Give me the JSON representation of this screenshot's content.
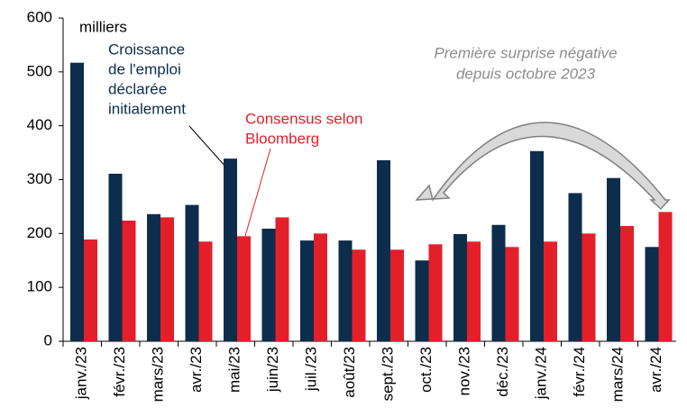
{
  "chart_data": {
    "type": "bar",
    "unit_label": "milliers",
    "categories": [
      "janv./23",
      "févr./23",
      "mars/23",
      "avr./23",
      "mai/23",
      "juin/23",
      "juil./23",
      "août/23",
      "sept./23",
      "oct./23",
      "nov./23",
      "déc./23",
      "janv./24",
      "févr./24",
      "mars/24",
      "avr./24"
    ],
    "series": [
      {
        "name": [
          "Croissance",
          "de l'emploi",
          "déclarée",
          "initialement"
        ],
        "color": "#0c2d4b",
        "values": [
          517,
          311,
          236,
          253,
          339,
          209,
          187,
          187,
          336,
          150,
          199,
          216,
          353,
          275,
          303,
          175
        ]
      },
      {
        "name": [
          "Consensus selon",
          "Bloomberg"
        ],
        "color": "#e3202a",
        "values": [
          189,
          224,
          230,
          185,
          195,
          230,
          200,
          170,
          170,
          180,
          185,
          175,
          185,
          200,
          214,
          240
        ]
      }
    ],
    "annotation": [
      "Première surprise négative",
      "depuis octobre 2023"
    ],
    "ylim": [
      0,
      600
    ],
    "yticks": [
      0,
      100,
      200,
      300,
      400,
      500,
      600
    ]
  }
}
